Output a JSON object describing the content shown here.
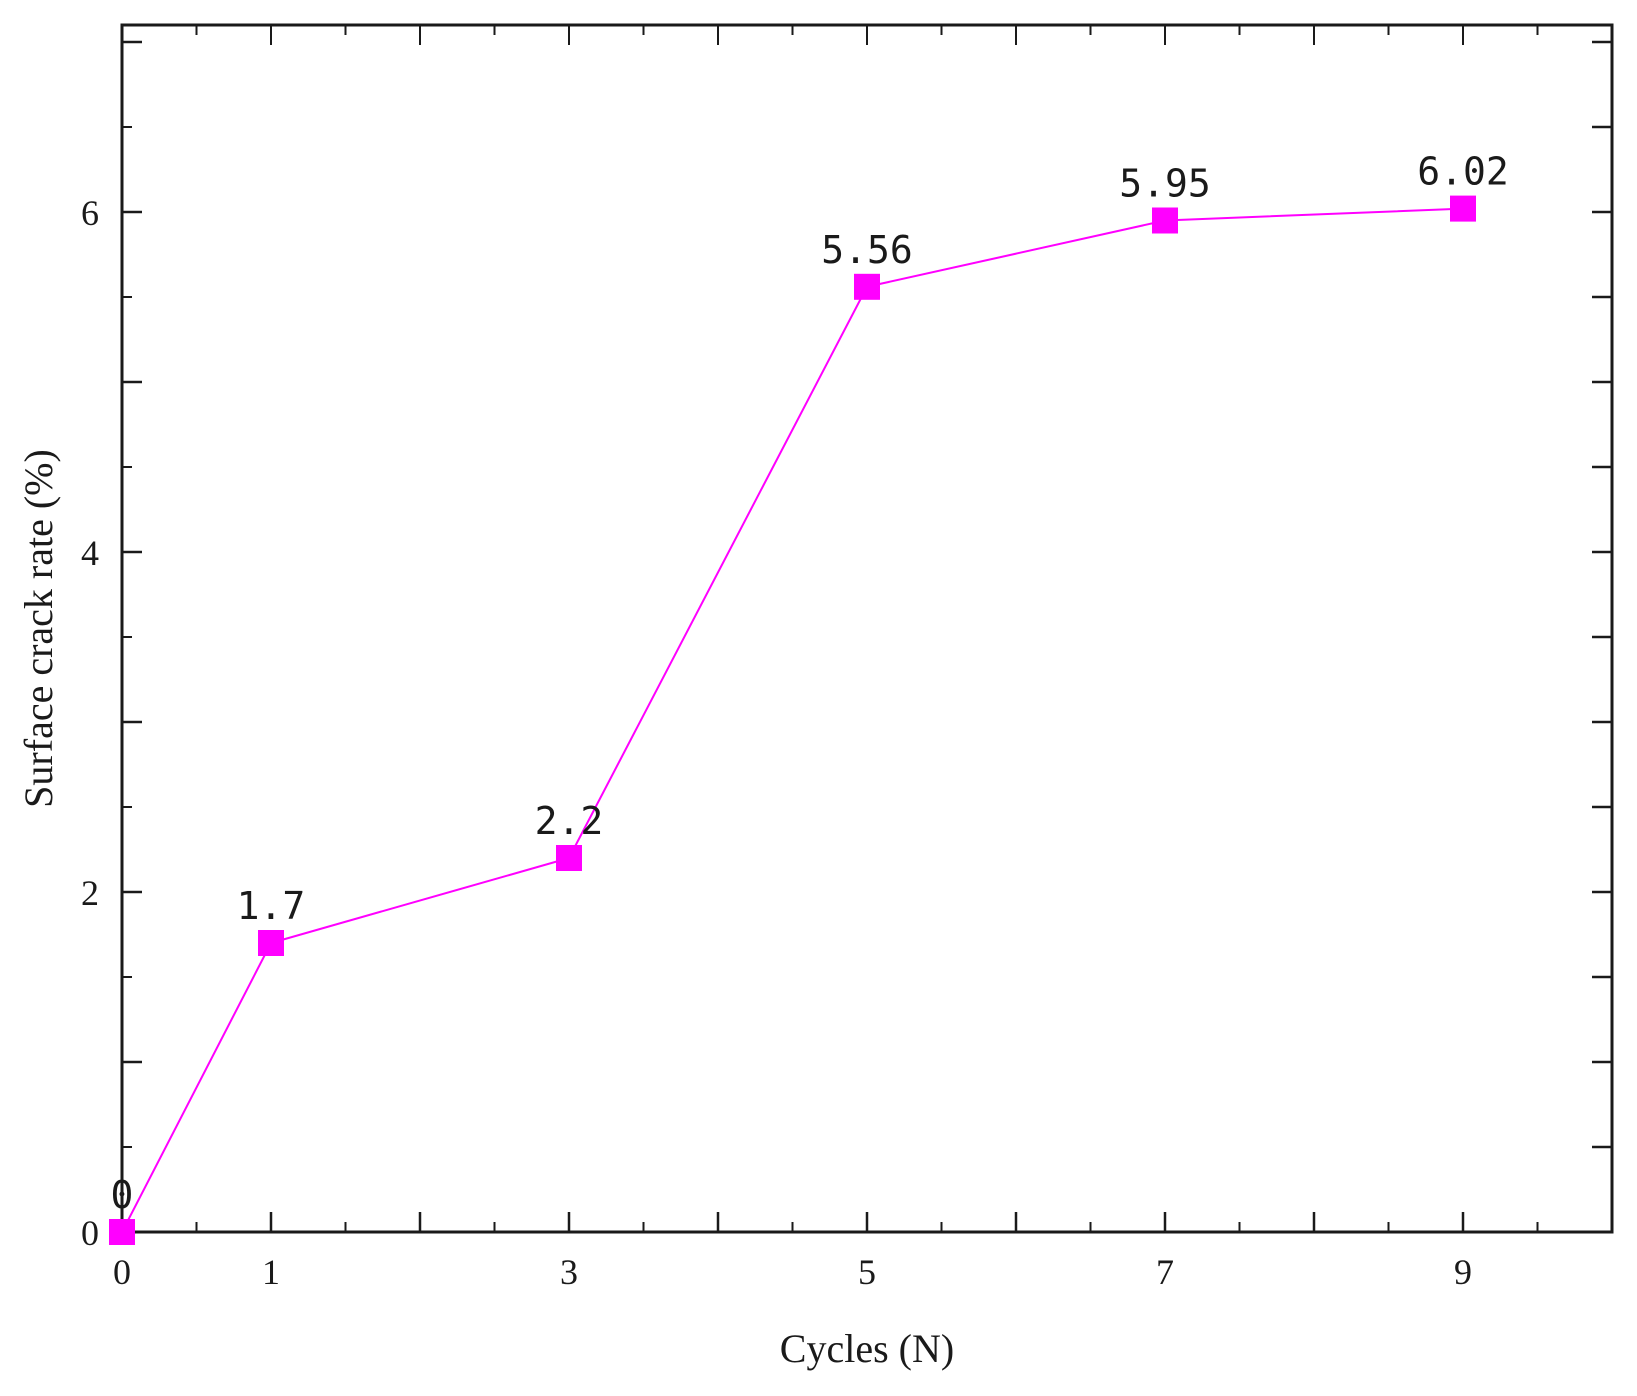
{
  "chart_data": {
    "type": "line",
    "title": "",
    "xlabel": "Cycles (N)",
    "ylabel": "Surface crack rate (%)",
    "x_tick_labels": [
      "0",
      "1",
      "3",
      "5",
      "7",
      "9"
    ],
    "y_tick_labels": [
      "0",
      "2",
      "4",
      "6"
    ],
    "xlim": [
      0,
      10
    ],
    "ylim": [
      0,
      7.1
    ],
    "grid": false,
    "legend": "none",
    "series": [
      {
        "color": "#ff00ff",
        "marker": "square",
        "x": [
          0,
          1,
          3,
          5,
          7,
          9
        ],
        "y": [
          0,
          1.7,
          2.2,
          5.56,
          5.95,
          6.02
        ],
        "labels": [
          "0",
          "1.7",
          "2.2",
          "5.56",
          "5.95",
          "6.02"
        ]
      }
    ]
  }
}
